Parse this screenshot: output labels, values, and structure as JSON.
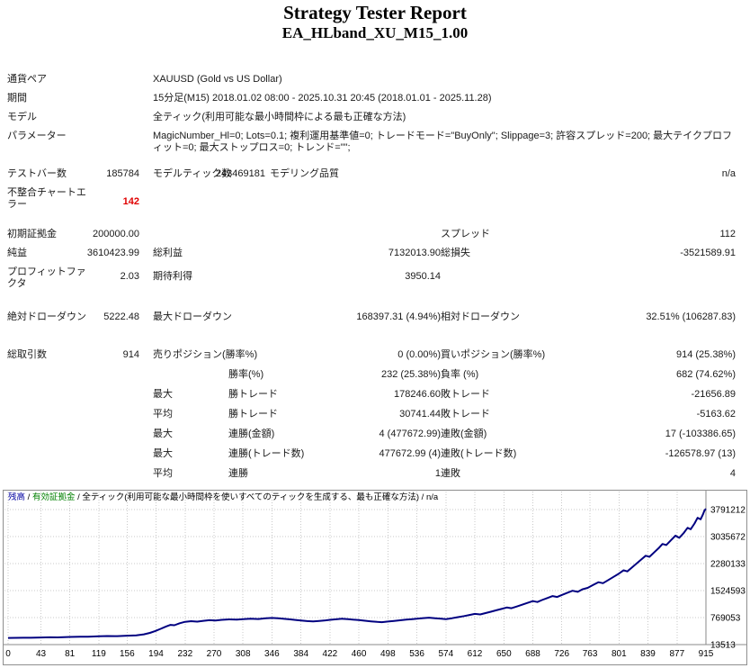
{
  "report": {
    "title": "Strategy Tester Report",
    "subtitle": "EA_HLband_XU_M15_1.00"
  },
  "colors": {
    "balance_line": "#000080",
    "equity_green": "#008000",
    "error_red": "#e00000"
  },
  "table": {
    "symbol": {
      "label": "通貨ペア",
      "value": "XAUUSD (Gold vs US Dollar)"
    },
    "period": {
      "label": "期間",
      "value": "15分足(M15) 2018.01.02 08:00 - 2025.10.31 20:45 (2018.01.01 - 2025.11.28)"
    },
    "model": {
      "label": "モデル",
      "value": "全ティック(利用可能な最小時間枠による最も正確な方法)"
    },
    "parameters": {
      "label": "パラメーター",
      "value": "MagicNumber_Hl=0; Lots=0.1; 複利運用基準値=0; トレードモード=\"BuyOnly\"; Slippage=3; 許容スプレッド=200; 最大テイクプロフィット=0; 最大ストップロス=0; トレンド=\"\";"
    },
    "bars": {
      "label": "テストバー数",
      "value": "185784",
      "label2": "モデルティック数",
      "value2": "243469181",
      "label3": "モデリング品質",
      "value3": "n/a"
    },
    "mismatch": {
      "label": "不整合チャートエラー",
      "value": "142"
    },
    "deposit": {
      "label": "初期証拠金",
      "value": "200000.00",
      "label3": "スプレッド",
      "value3": "112"
    },
    "netprofit": {
      "label": "純益",
      "value": "3610423.99",
      "label2": "総利益",
      "value2": "7132013.90",
      "label3": "総損失",
      "value3": "-3521589.91"
    },
    "pf": {
      "label": "プロフィットファクタ",
      "value": "2.03",
      "label2": "期待利得",
      "value2": "3950.14"
    },
    "dd": {
      "label": "絶対ドローダウン",
      "value": "5222.48",
      "label2": "最大ドローダウン",
      "value2": "168397.31 (4.94%)",
      "label3": "相対ドローダウン",
      "value3": "32.51% (106287.83)"
    },
    "trades": {
      "label": "総取引数",
      "value": "914",
      "label2": "売りポジション(勝率%)",
      "value2": "0 (0.00%)",
      "label3": "買いポジション(勝率%)",
      "value3": "914 (25.38%)"
    },
    "winrate": {
      "label2": "勝率(%)",
      "value2": "232 (25.38%)",
      "label3": "負率 (%)",
      "value3": "682 (74.62%)"
    },
    "maxwin": {
      "prefix": "最大",
      "label2": "勝トレード",
      "value2": "178246.60",
      "label3": "敗トレード",
      "value3": "-21656.89"
    },
    "avgwin": {
      "prefix": "平均",
      "label2": "勝トレード",
      "value2": "30741.44",
      "label3": "敗トレード",
      "value3": "-5163.62"
    },
    "maxconsec_money": {
      "prefix": "最大",
      "label2": "連勝(金額)",
      "value2": "4 (477672.99)",
      "label3": "連敗(金額)",
      "value3": "17 (-103386.65)"
    },
    "maxconsec_count": {
      "prefix": "最大",
      "label2": "連勝(トレード数)",
      "value2": "477672.99 (4)",
      "label3": "連敗(トレード数)",
      "value3": "-126578.97 (13)"
    },
    "avgconsec": {
      "prefix": "平均",
      "label2": "連勝",
      "value2": "1",
      "label3": "連敗",
      "value3": "4"
    }
  },
  "chart_data": {
    "type": "line",
    "title": "",
    "xlabel": "",
    "ylabel": "",
    "legend": [
      {
        "label": "残高",
        "color": "#0000a0"
      },
      {
        "label": "有効証拠金",
        "color": "#008000"
      },
      {
        "label": "全ティック(利用可能な最小時間枠を使いすべてのティックを生成する、最も正確な方法)",
        "color": "#000000"
      },
      {
        "label": "n/a",
        "color": "#000000"
      }
    ],
    "x_range": [
      0,
      915
    ],
    "y_range": [
      13513,
      3791212
    ],
    "x_ticks": [
      0,
      43,
      81,
      119,
      156,
      194,
      232,
      270,
      308,
      346,
      384,
      422,
      460,
      498,
      536,
      574,
      612,
      650,
      688,
      726,
      763,
      801,
      839,
      877,
      915
    ],
    "y_ticks": [
      13513,
      769053,
      1524593,
      2280133,
      3035672,
      3791212
    ],
    "grid": true,
    "legend_position": "top-left-inside",
    "series": [
      {
        "name": "残高",
        "color": "#000080",
        "points": [
          [
            0,
            200000
          ],
          [
            10,
            202000
          ],
          [
            20,
            206000
          ],
          [
            30,
            204000
          ],
          [
            43,
            212000
          ],
          [
            55,
            218000
          ],
          [
            65,
            215000
          ],
          [
            81,
            228000
          ],
          [
            95,
            236000
          ],
          [
            105,
            233000
          ],
          [
            119,
            246000
          ],
          [
            130,
            252000
          ],
          [
            143,
            249000
          ],
          [
            156,
            262000
          ],
          [
            168,
            274000
          ],
          [
            178,
            300000
          ],
          [
            186,
            340000
          ],
          [
            193,
            395000
          ],
          [
            200,
            455000
          ],
          [
            207,
            520000
          ],
          [
            213,
            565000
          ],
          [
            218,
            555000
          ],
          [
            225,
            610000
          ],
          [
            232,
            650000
          ],
          [
            240,
            668000
          ],
          [
            248,
            655000
          ],
          [
            256,
            678000
          ],
          [
            264,
            695000
          ],
          [
            272,
            688000
          ],
          [
            280,
            705000
          ],
          [
            290,
            718000
          ],
          [
            300,
            710000
          ],
          [
            308,
            725000
          ],
          [
            318,
            738000
          ],
          [
            328,
            728000
          ],
          [
            338,
            748000
          ],
          [
            346,
            760000
          ],
          [
            354,
            750000
          ],
          [
            362,
            735000
          ],
          [
            370,
            718000
          ],
          [
            378,
            700000
          ],
          [
            384,
            688000
          ],
          [
            392,
            672000
          ],
          [
            400,
            660000
          ],
          [
            408,
            676000
          ],
          [
            416,
            692000
          ],
          [
            422,
            706000
          ],
          [
            430,
            722000
          ],
          [
            438,
            736000
          ],
          [
            446,
            726000
          ],
          [
            452,
            712000
          ],
          [
            460,
            698000
          ],
          [
            468,
            682000
          ],
          [
            476,
            664000
          ],
          [
            484,
            648000
          ],
          [
            490,
            640000
          ],
          [
            498,
            658000
          ],
          [
            506,
            676000
          ],
          [
            514,
            694000
          ],
          [
            522,
            710000
          ],
          [
            530,
            726000
          ],
          [
            536,
            740000
          ],
          [
            544,
            754000
          ],
          [
            552,
            766000
          ],
          [
            560,
            752000
          ],
          [
            568,
            738000
          ],
          [
            574,
            726000
          ],
          [
            582,
            752000
          ],
          [
            590,
            782000
          ],
          [
            598,
            812000
          ],
          [
            605,
            842000
          ],
          [
            612,
            872000
          ],
          [
            619,
            858000
          ],
          [
            626,
            896000
          ],
          [
            633,
            934000
          ],
          [
            640,
            972000
          ],
          [
            647,
            1012000
          ],
          [
            654,
            1052000
          ],
          [
            660,
            1032000
          ],
          [
            667,
            1080000
          ],
          [
            674,
            1130000
          ],
          [
            681,
            1180000
          ],
          [
            688,
            1230000
          ],
          [
            694,
            1205000
          ],
          [
            700,
            1260000
          ],
          [
            707,
            1315000
          ],
          [
            714,
            1370000
          ],
          [
            720,
            1345000
          ],
          [
            726,
            1400000
          ],
          [
            733,
            1460000
          ],
          [
            740,
            1520000
          ],
          [
            747,
            1490000
          ],
          [
            753,
            1560000
          ],
          [
            760,
            1600000
          ],
          [
            767,
            1680000
          ],
          [
            774,
            1760000
          ],
          [
            780,
            1730000
          ],
          [
            787,
            1820000
          ],
          [
            794,
            1910000
          ],
          [
            801,
            2000000
          ],
          [
            807,
            2090000
          ],
          [
            812,
            2060000
          ],
          [
            818,
            2170000
          ],
          [
            824,
            2280000
          ],
          [
            830,
            2390000
          ],
          [
            836,
            2500000
          ],
          [
            841,
            2470000
          ],
          [
            847,
            2590000
          ],
          [
            853,
            2710000
          ],
          [
            858,
            2830000
          ],
          [
            863,
            2800000
          ],
          [
            869,
            2930000
          ],
          [
            875,
            3060000
          ],
          [
            880,
            3000000
          ],
          [
            886,
            3140000
          ],
          [
            891,
            3280000
          ],
          [
            895,
            3240000
          ],
          [
            900,
            3400000
          ],
          [
            904,
            3560000
          ],
          [
            908,
            3520000
          ],
          [
            911,
            3650000
          ],
          [
            913,
            3760000
          ],
          [
            915,
            3810424
          ]
        ]
      }
    ]
  }
}
